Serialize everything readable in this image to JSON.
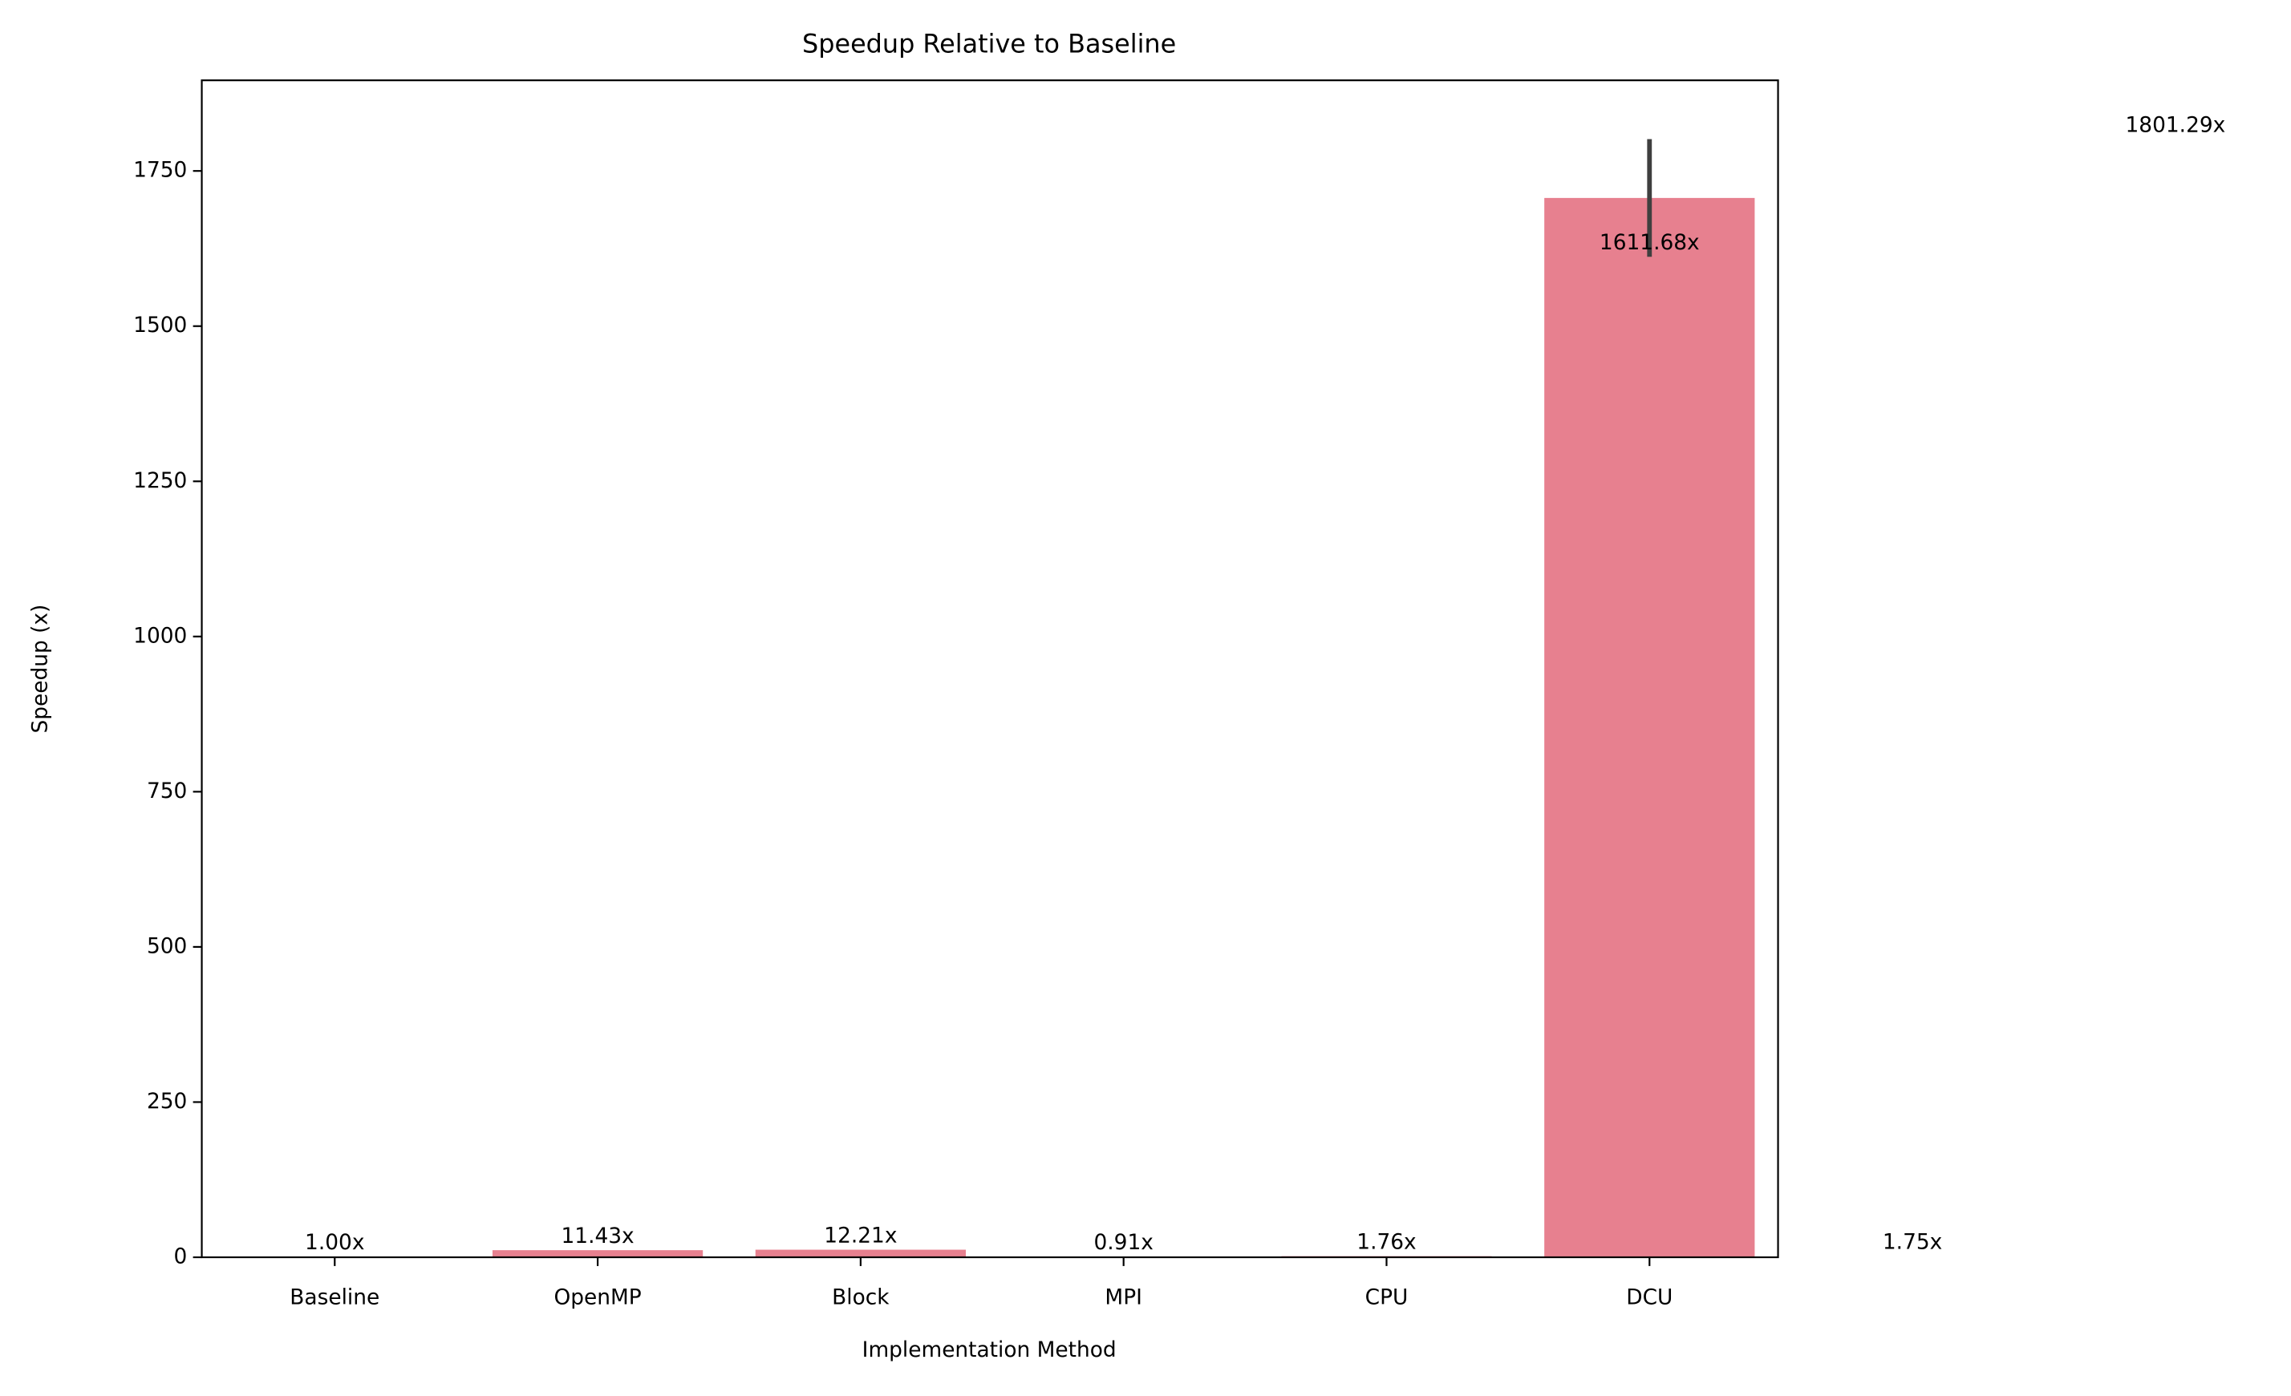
{
  "chart_data": {
    "type": "bar",
    "title": "Speedup Relative to Baseline",
    "x_label": "Implementation Method",
    "y_label": "Speedup (x)",
    "categories": [
      "Baseline",
      "OpenMP",
      "Block",
      "MPI",
      "CPU",
      "DCU"
    ],
    "values": [
      1.0,
      11.43,
      12.21,
      0.91,
      1.755,
      1706.49
    ],
    "errors": [
      null,
      null,
      null,
      null,
      null,
      [
        1611.68,
        1801.29
      ]
    ],
    "color": "#e7808f",
    "error_color": "#3f3f3f",
    "annotations": [
      {
        "value": 1.0,
        "label": "1.00x"
      },
      {
        "value": 11.43,
        "label": "11.43x"
      },
      {
        "value": 12.21,
        "label": "12.21x"
      },
      {
        "value": 0.91,
        "label": "0.91x"
      },
      {
        "value": 1.76,
        "label": "1.76x"
      },
      {
        "value": 1611.68,
        "label": "1611.68x"
      },
      {
        "value": 1.75,
        "label": "1.75x"
      },
      {
        "value": 1801.29,
        "label": "1801.29x"
      }
    ],
    "ylim": [
      0,
      1896
    ],
    "yticks": [
      0,
      250,
      500,
      750,
      1000,
      1250,
      1500,
      1750
    ]
  }
}
